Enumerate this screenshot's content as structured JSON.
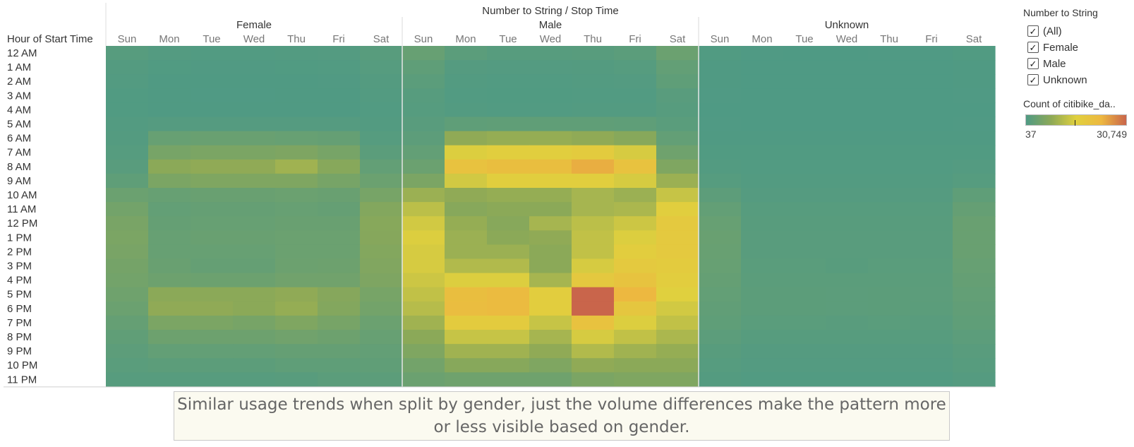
{
  "chart_data": {
    "type": "heatmap",
    "title": "Number to String  /  Stop Time",
    "row_axis_label": "Hour of Start Time",
    "rows": [
      "12 AM",
      "1 AM",
      "2 AM",
      "3 AM",
      "4 AM",
      "5 AM",
      "6 AM",
      "7 AM",
      "8 AM",
      "9 AM",
      "10 AM",
      "11 AM",
      "12 PM",
      "1 PM",
      "2 PM",
      "3 PM",
      "4 PM",
      "5 PM",
      "6 PM",
      "7 PM",
      "8 PM",
      "9 PM",
      "10 PM",
      "11 PM"
    ],
    "days": [
      "Sun",
      "Mon",
      "Tue",
      "Wed",
      "Thu",
      "Fri",
      "Sat"
    ],
    "groups": [
      {
        "name": "Female",
        "values": [
          [
            1000,
            600,
            400,
            400,
            500,
            600,
            1200
          ],
          [
            700,
            300,
            250,
            250,
            300,
            350,
            900
          ],
          [
            500,
            200,
            150,
            150,
            200,
            250,
            700
          ],
          [
            300,
            150,
            120,
            120,
            150,
            150,
            500
          ],
          [
            300,
            200,
            150,
            150,
            200,
            200,
            400
          ],
          [
            500,
            800,
            800,
            800,
            800,
            800,
            500
          ],
          [
            700,
            3000,
            3200,
            3200,
            3000,
            2800,
            900
          ],
          [
            900,
            5000,
            5500,
            5500,
            5800,
            5000,
            1500
          ],
          [
            1300,
            7500,
            8000,
            8000,
            9500,
            7000,
            2500
          ],
          [
            2000,
            5500,
            6000,
            6000,
            6000,
            5000,
            3500
          ],
          [
            3500,
            3000,
            3200,
            3200,
            3500,
            3200,
            5000
          ],
          [
            4500,
            2500,
            2700,
            2700,
            3000,
            2800,
            6500
          ],
          [
            5200,
            2800,
            3000,
            3000,
            3200,
            3200,
            7000
          ],
          [
            5500,
            3000,
            3200,
            3200,
            3500,
            3500,
            6800
          ],
          [
            5200,
            3000,
            3000,
            3000,
            3500,
            3500,
            6500
          ],
          [
            4800,
            3200,
            2800,
            2800,
            3600,
            3800,
            6200
          ],
          [
            4500,
            3800,
            3600,
            3600,
            4200,
            4200,
            5800
          ],
          [
            4000,
            7500,
            7500,
            7500,
            8000,
            6800,
            5000
          ],
          [
            3500,
            8000,
            8000,
            7500,
            8500,
            6500,
            4500
          ],
          [
            2800,
            5500,
            5500,
            5000,
            6000,
            5000,
            3500
          ],
          [
            2200,
            3800,
            3800,
            3800,
            4200,
            3800,
            3000
          ],
          [
            1800,
            2500,
            2500,
            2500,
            2800,
            2800,
            2500
          ],
          [
            1400,
            1700,
            1700,
            1700,
            2000,
            2000,
            2200
          ],
          [
            1000,
            1000,
            1000,
            1000,
            1200,
            1500,
            1700
          ]
        ]
      },
      {
        "name": "Male",
        "values": [
          [
            3000,
            1500,
            1000,
            1000,
            1200,
            1500,
            3500
          ],
          [
            2000,
            800,
            600,
            600,
            700,
            900,
            2500
          ],
          [
            1500,
            500,
            400,
            400,
            500,
            600,
            2000
          ],
          [
            1000,
            400,
            300,
            300,
            400,
            400,
            1300
          ],
          [
            900,
            500,
            400,
            400,
            500,
            500,
            1000
          ],
          [
            1300,
            2000,
            2200,
            2200,
            2200,
            2000,
            1400
          ],
          [
            1800,
            8000,
            8500,
            8500,
            8000,
            7000,
            2500
          ],
          [
            2500,
            15000,
            16000,
            16000,
            17000,
            14500,
            4000
          ],
          [
            3500,
            20000,
            21000,
            21000,
            24000,
            20000,
            6000
          ],
          [
            5500,
            14000,
            16000,
            16000,
            16000,
            14500,
            9000
          ],
          [
            9000,
            8000,
            8500,
            8500,
            10000,
            9000,
            13000
          ],
          [
            12000,
            7000,
            7500,
            7500,
            10000,
            10500,
            16000
          ],
          [
            14000,
            8500,
            7000,
            10000,
            12000,
            13500,
            17500
          ],
          [
            15000,
            9000,
            7500,
            8000,
            12500,
            15000,
            17500
          ],
          [
            14500,
            9000,
            9000,
            7500,
            12500,
            16500,
            17500
          ],
          [
            14500,
            11000,
            11000,
            7500,
            14500,
            17500,
            17000
          ],
          [
            13500,
            15000,
            15000,
            10000,
            18000,
            19500,
            16500
          ],
          [
            12500,
            21000,
            22000,
            16500,
            30749,
            23000,
            15500
          ],
          [
            11500,
            21500,
            22000,
            16500,
            30749,
            18500,
            14000
          ],
          [
            9500,
            17000,
            17000,
            13000,
            20000,
            15000,
            12500
          ],
          [
            7500,
            13000,
            13000,
            10000,
            14500,
            12500,
            10500
          ],
          [
            6000,
            9500,
            9500,
            8000,
            11000,
            9500,
            8500
          ],
          [
            4500,
            7000,
            7000,
            6000,
            8000,
            7500,
            7500
          ],
          [
            3500,
            4000,
            4000,
            4000,
            5500,
            6000,
            6000
          ]
        ]
      },
      {
        "name": "Unknown",
        "values": [
          [
            300,
            100,
            80,
            80,
            100,
            100,
            300
          ],
          [
            200,
            80,
            60,
            60,
            80,
            80,
            200
          ],
          [
            150,
            60,
            50,
            50,
            60,
            60,
            150
          ],
          [
            100,
            50,
            40,
            40,
            50,
            50,
            100
          ],
          [
            80,
            40,
            37,
            37,
            40,
            40,
            80
          ],
          [
            100,
            60,
            50,
            50,
            60,
            60,
            100
          ],
          [
            200,
            150,
            150,
            150,
            150,
            150,
            200
          ],
          [
            300,
            300,
            300,
            300,
            300,
            300,
            300
          ],
          [
            500,
            400,
            400,
            400,
            400,
            400,
            600
          ],
          [
            900,
            500,
            500,
            500,
            500,
            500,
            900
          ],
          [
            1800,
            800,
            800,
            800,
            800,
            800,
            2000
          ],
          [
            2500,
            1000,
            1000,
            1000,
            1000,
            1000,
            2800
          ],
          [
            3000,
            1200,
            1200,
            1200,
            1200,
            1200,
            3200
          ],
          [
            3200,
            1300,
            1300,
            1300,
            1300,
            1300,
            3300
          ],
          [
            3100,
            1300,
            1300,
            1300,
            1300,
            1300,
            3200
          ],
          [
            3000,
            1400,
            1400,
            1200,
            1400,
            1400,
            3000
          ],
          [
            2800,
            1500,
            1500,
            1500,
            1500,
            1500,
            2800
          ],
          [
            2500,
            1700,
            1700,
            1600,
            1700,
            1600,
            2500
          ],
          [
            2300,
            1700,
            1700,
            1600,
            1700,
            1500,
            2300
          ],
          [
            2000,
            1400,
            1400,
            1300,
            1400,
            1300,
            2000
          ],
          [
            1600,
            1000,
            1000,
            1000,
            1000,
            1000,
            1600
          ],
          [
            1200,
            800,
            800,
            800,
            800,
            800,
            1300
          ],
          [
            900,
            600,
            600,
            600,
            600,
            600,
            1000
          ],
          [
            700,
            400,
            400,
            400,
            400,
            400,
            800
          ]
        ]
      }
    ],
    "color_scale": {
      "min": 37,
      "max": 30749,
      "stops": [
        "#4f9a84",
        "#8da957",
        "#e0d03e",
        "#edb840",
        "#c9654b"
      ]
    }
  },
  "filter": {
    "title": "Number to String",
    "items": [
      {
        "label": "(All)",
        "checked": true
      },
      {
        "label": "Female",
        "checked": true
      },
      {
        "label": "Male",
        "checked": true
      },
      {
        "label": "Unknown",
        "checked": true
      }
    ]
  },
  "legend": {
    "title": "Count of citibike_da..",
    "min_label": "37",
    "max_label": "30,749"
  },
  "caption": "Similar usage trends when split by gender, just the volume differences make the pattern more or less visible based on gender.",
  "check_glyph": "✓"
}
